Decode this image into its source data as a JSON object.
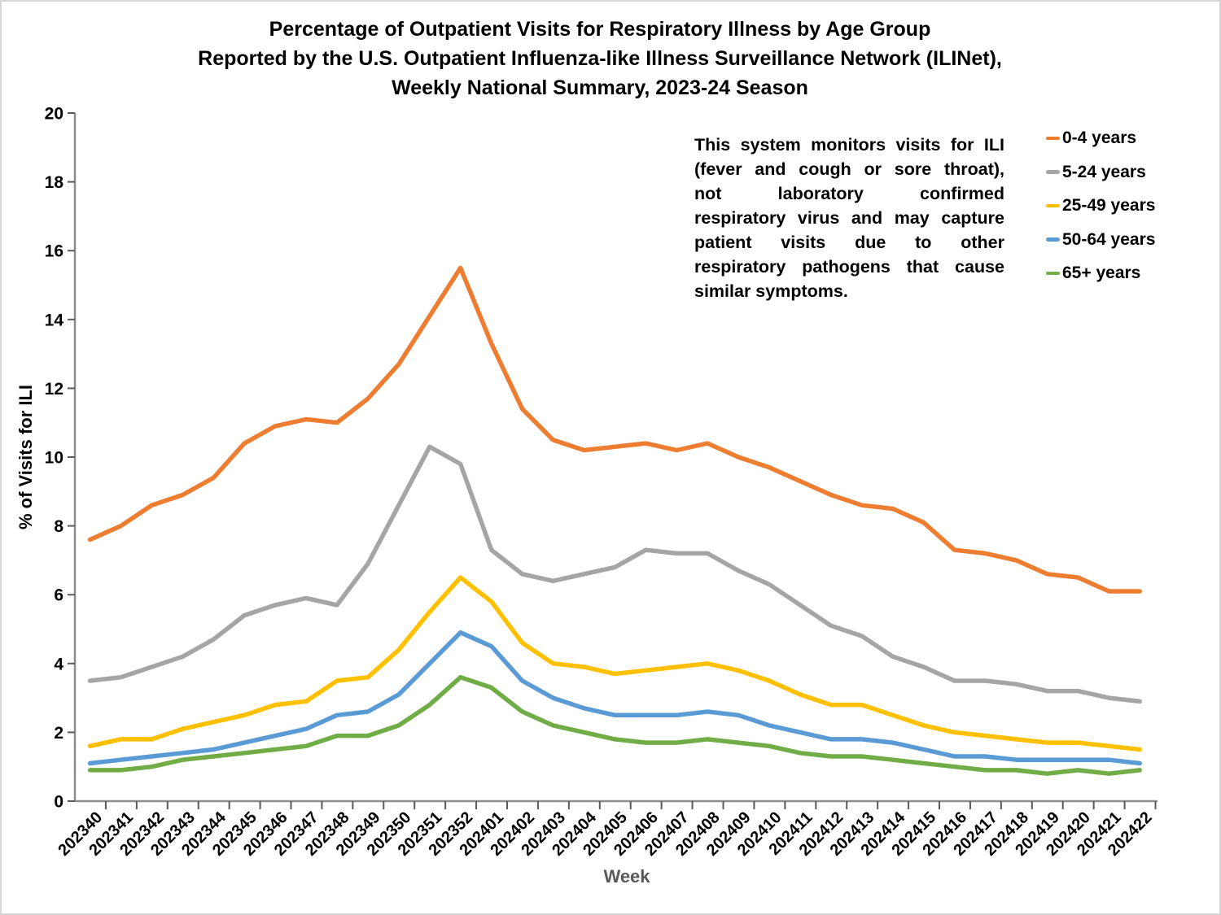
{
  "title": {
    "line1": "Percentage of Outpatient Visits for Respiratory Illness by Age Group",
    "line2": "Reported by the U.S. Outpatient Influenza-like Illness Surveillance Network (ILINet),",
    "line3": "Weekly National Summary, 2023-24 Season"
  },
  "annotation": {
    "lines": [
      "This system monitors visits for ILI",
      "(fever and cough or sore throat),",
      "not laboratory confirmed",
      "respiratory virus and may capture",
      "patient visits due to other",
      "respiratory pathogens that cause",
      "similar symptoms."
    ]
  },
  "legend": {
    "items": [
      {
        "label": "0-4 years",
        "color": "#ED7D31"
      },
      {
        "label": "5-24 years",
        "color": "#A5A5A5"
      },
      {
        "label": "25-49 years",
        "color": "#FFC000"
      },
      {
        "label": "50-64 years",
        "color": "#5B9BD5"
      },
      {
        "label": "65+ years",
        "color": "#70AD47"
      }
    ]
  },
  "chart_data": {
    "type": "line",
    "title": "Percentage of Outpatient Visits for Respiratory Illness by Age Group Reported by the U.S. Outpatient Influenza-like Illness Surveillance Network (ILINet), Weekly National Summary, 2023-24 Season",
    "xlabel": "Week",
    "ylabel": "% of Visits for ILI",
    "ylim": [
      0,
      20
    ],
    "ytick_step": 2,
    "grid": false,
    "legend_position": "right",
    "x": [
      "202340",
      "202341",
      "202342",
      "202343",
      "202344",
      "202345",
      "202346",
      "202347",
      "202348",
      "202349",
      "202350",
      "202351",
      "202352",
      "202401",
      "202402",
      "202403",
      "202404",
      "202405",
      "202406",
      "202407",
      "202408",
      "202409",
      "202410",
      "202411",
      "202412",
      "202413",
      "202414",
      "202415",
      "202416",
      "202417",
      "202418",
      "202419",
      "202420",
      "202421",
      "202422"
    ],
    "series": [
      {
        "name": "0-4 years",
        "color": "#ED7D31",
        "values": [
          7.6,
          8.0,
          8.6,
          8.9,
          9.4,
          10.4,
          10.9,
          11.1,
          11.0,
          11.7,
          12.7,
          14.1,
          15.5,
          13.3,
          11.4,
          10.5,
          10.2,
          10.3,
          10.4,
          10.2,
          10.4,
          10.0,
          9.7,
          9.3,
          8.9,
          8.6,
          8.5,
          8.1,
          7.3,
          7.2,
          7.0,
          6.6,
          6.5,
          6.1,
          6.1
        ]
      },
      {
        "name": "5-24 years",
        "color": "#A5A5A5",
        "values": [
          3.5,
          3.6,
          3.9,
          4.2,
          4.7,
          5.4,
          5.7,
          5.9,
          5.7,
          6.9,
          8.6,
          10.3,
          9.8,
          7.3,
          6.6,
          6.4,
          6.6,
          6.8,
          7.3,
          7.2,
          7.2,
          6.7,
          6.3,
          5.7,
          5.1,
          4.8,
          4.2,
          3.9,
          3.5,
          3.5,
          3.4,
          3.2,
          3.2,
          3.0,
          2.9
        ]
      },
      {
        "name": "25-49 years",
        "color": "#FFC000",
        "values": [
          1.6,
          1.8,
          1.8,
          2.1,
          2.3,
          2.5,
          2.8,
          2.9,
          3.5,
          3.6,
          4.4,
          5.5,
          6.5,
          5.8,
          4.6,
          4.0,
          3.9,
          3.7,
          3.8,
          3.9,
          4.0,
          3.8,
          3.5,
          3.1,
          2.8,
          2.8,
          2.5,
          2.2,
          2.0,
          1.9,
          1.8,
          1.7,
          1.7,
          1.6,
          1.5
        ]
      },
      {
        "name": "50-64 years",
        "color": "#5B9BD5",
        "values": [
          1.1,
          1.2,
          1.3,
          1.4,
          1.5,
          1.7,
          1.9,
          2.1,
          2.5,
          2.6,
          3.1,
          4.0,
          4.9,
          4.5,
          3.5,
          3.0,
          2.7,
          2.5,
          2.5,
          2.5,
          2.6,
          2.5,
          2.2,
          2.0,
          1.8,
          1.8,
          1.7,
          1.5,
          1.3,
          1.3,
          1.2,
          1.2,
          1.2,
          1.2,
          1.1
        ]
      },
      {
        "name": "65+ years",
        "color": "#70AD47",
        "values": [
          0.9,
          0.9,
          1.0,
          1.2,
          1.3,
          1.4,
          1.5,
          1.6,
          1.9,
          1.9,
          2.2,
          2.8,
          3.6,
          3.3,
          2.6,
          2.2,
          2.0,
          1.8,
          1.7,
          1.7,
          1.8,
          1.7,
          1.6,
          1.4,
          1.3,
          1.3,
          1.2,
          1.1,
          1.0,
          0.9,
          0.9,
          0.8,
          0.9,
          0.8,
          0.9
        ]
      }
    ]
  },
  "colors": {
    "axis_line": "#8C8C8C",
    "tick_mark": "#595959",
    "xlabel_color": "#595959",
    "text": "#000000"
  }
}
